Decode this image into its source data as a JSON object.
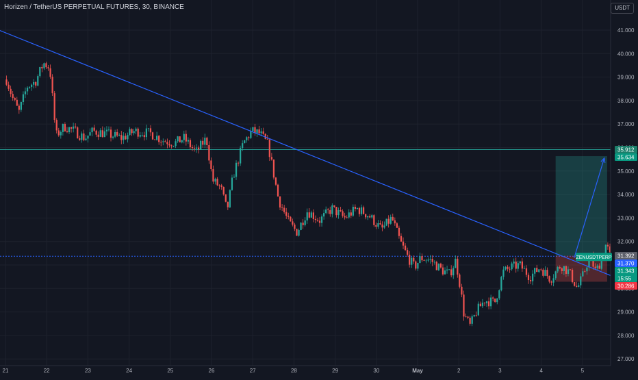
{
  "header": {
    "title": "Horizen / TetherUS PERPETUAL FUTURES, 30, BINANCE",
    "currency_button": "USDT"
  },
  "chart_data": {
    "type": "candlestick",
    "symbol": "ZENUSDTPERP",
    "x_ticks": [
      "21",
      "22",
      "23",
      "24",
      "25",
      "26",
      "27",
      "28",
      "29",
      "30",
      "May",
      "2",
      "3",
      "4",
      "5"
    ],
    "y_ticks": [
      "41.000",
      "40.000",
      "39.000",
      "38.000",
      "37.000",
      "36.000",
      "35.000",
      "34.000",
      "33.000",
      "32.000",
      "31.000",
      "30.000",
      "29.000",
      "28.000",
      "27.000"
    ],
    "ylim": [
      26.9,
      41.7
    ],
    "x_day_range": [
      21,
      35.9
    ],
    "price_path": [
      [
        21.0,
        38.9
      ],
      [
        21.15,
        38.1
      ],
      [
        21.3,
        37.5
      ],
      [
        21.5,
        38.6
      ],
      [
        21.7,
        38.8
      ],
      [
        21.9,
        39.6
      ],
      [
        22.05,
        39.4
      ],
      [
        22.2,
        36.5
      ],
      [
        22.4,
        36.9
      ],
      [
        22.65,
        36.7
      ],
      [
        22.9,
        36.4
      ],
      [
        23.1,
        36.7
      ],
      [
        23.4,
        36.6
      ],
      [
        23.8,
        36.4
      ],
      [
        24.1,
        36.7
      ],
      [
        24.5,
        36.6
      ],
      [
        24.8,
        36.3
      ],
      [
        25.1,
        36.2
      ],
      [
        25.3,
        36.4
      ],
      [
        25.6,
        35.8
      ],
      [
        25.85,
        36.4
      ],
      [
        26.0,
        34.6
      ],
      [
        26.2,
        34.3
      ],
      [
        26.35,
        33.3
      ],
      [
        26.5,
        34.8
      ],
      [
        26.75,
        36.2
      ],
      [
        26.95,
        36.7
      ],
      [
        27.15,
        36.6
      ],
      [
        27.35,
        36.1
      ],
      [
        27.6,
        33.8
      ],
      [
        27.85,
        32.8
      ],
      [
        28.05,
        32.4
      ],
      [
        28.3,
        33.3
      ],
      [
        28.6,
        32.9
      ],
      [
        28.9,
        33.4
      ],
      [
        29.2,
        33.0
      ],
      [
        29.5,
        33.4
      ],
      [
        29.8,
        33.1
      ],
      [
        30.1,
        32.5
      ],
      [
        30.35,
        33.0
      ],
      [
        30.55,
        32.0
      ],
      [
        30.75,
        31.3
      ],
      [
        30.9,
        30.9
      ],
      [
        31.05,
        31.3
      ],
      [
        31.3,
        31.2
      ],
      [
        31.55,
        30.8
      ],
      [
        31.75,
        30.6
      ],
      [
        31.9,
        31.2
      ],
      [
        32.0,
        30.2
      ],
      [
        32.1,
        28.9
      ],
      [
        32.25,
        28.4
      ],
      [
        32.4,
        29.0
      ],
      [
        32.6,
        29.5
      ],
      [
        32.85,
        29.4
      ],
      [
        33.05,
        30.7
      ],
      [
        33.25,
        30.9
      ],
      [
        33.45,
        31.0
      ],
      [
        33.7,
        30.5
      ],
      [
        33.95,
        30.9
      ],
      [
        34.2,
        30.4
      ],
      [
        34.45,
        31.0
      ],
      [
        34.65,
        30.7
      ],
      [
        34.85,
        30.0
      ],
      [
        35.0,
        30.6
      ],
      [
        35.15,
        31.4
      ],
      [
        35.3,
        30.7
      ],
      [
        35.45,
        31.3
      ],
      [
        35.55,
        31.9
      ],
      [
        35.65,
        31.34
      ]
    ],
    "lines": {
      "trendline": {
        "color": "#2962ff",
        "from": [
          20.7,
          41.1
        ],
        "to": [
          35.9,
          30.4
        ]
      },
      "green_hline": {
        "color": "#26a69a",
        "price": 35.912
      },
      "blue_hline": {
        "color": "#2962ff",
        "price": 31.37,
        "dashed": true
      },
      "arrow": {
        "color": "#2962ff",
        "from": [
          34.8,
          31.3
        ],
        "to": [
          35.53,
          35.55
        ]
      }
    },
    "position": {
      "type": "long",
      "x_range": [
        34.35,
        35.6
      ],
      "entry": 31.392,
      "target": 35.634,
      "stop": 30.286,
      "target_color": "#26a69a",
      "stop_color": "#ef5350"
    },
    "price_labels": [
      {
        "price": 35.912,
        "text": "35.912",
        "color": "#1b7f6b"
      },
      {
        "price": 35.634,
        "text": "35.634",
        "color": "#089981"
      },
      {
        "price": 31.392,
        "text": "31.392",
        "color": "#5d606b"
      },
      {
        "price": 31.37,
        "text": "31.370",
        "color": "#2962ff"
      },
      {
        "price": 31.343,
        "text": "31.343",
        "sub": "15:55",
        "color": "#089981"
      },
      {
        "price": 30.286,
        "text": "30.286",
        "color": "#f23645"
      }
    ],
    "symbol_tag": {
      "text": "ZENUSDTPERP",
      "price": 31.343,
      "color": "#089981"
    }
  }
}
